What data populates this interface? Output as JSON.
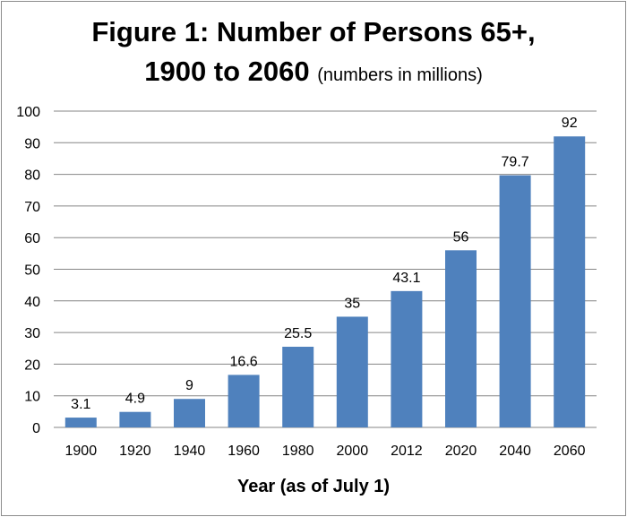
{
  "title": {
    "line1": "Figure 1:  Number of Persons 65+,",
    "line2": "1900 to 2060",
    "note": "(numbers in millions)"
  },
  "chart_data": {
    "type": "bar",
    "categories": [
      "1900",
      "1920",
      "1940",
      "1960",
      "1980",
      "2000",
      "2012",
      "2020",
      "2040",
      "2060"
    ],
    "values": [
      3.1,
      4.9,
      9,
      16.6,
      25.5,
      35,
      43.1,
      56,
      79.7,
      92
    ],
    "data_labels": [
      "3.1",
      "4.9",
      "9",
      "16.6",
      "25.5",
      "35",
      "43.1",
      "56",
      "79.7",
      "92"
    ],
    "ylim": [
      0,
      100
    ],
    "yticks": [
      0,
      10,
      20,
      30,
      40,
      50,
      60,
      70,
      80,
      90,
      100
    ],
    "xlabel": "Year (as of July 1)",
    "ylabel": "",
    "grid": true,
    "bar_color": "#4f81bd"
  }
}
